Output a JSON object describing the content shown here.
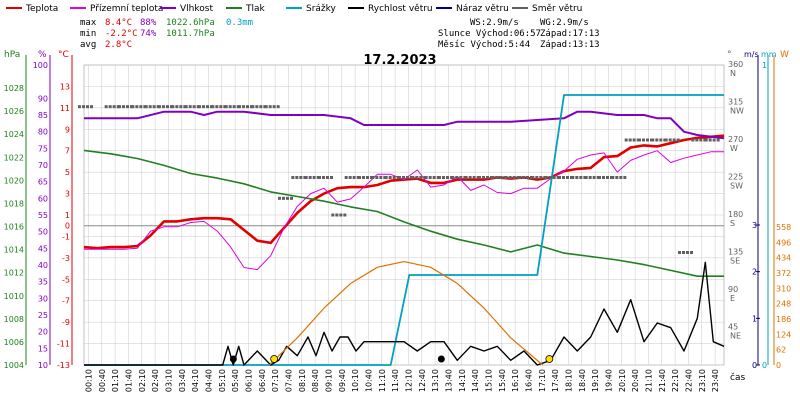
{
  "legend": [
    {
      "label": "Teplota",
      "color": "#e00000"
    },
    {
      "label": "Přízemní teplota",
      "color": "#e000e0"
    },
    {
      "label": "Vlhkost",
      "color": "#8000c0"
    },
    {
      "label": "Tlak",
      "color": "#208020"
    },
    {
      "label": "Srážky",
      "color": "#00a0c0"
    },
    {
      "label": "Rychlost větru",
      "color": "#000000"
    },
    {
      "label": "Náraz větru",
      "color": "#000080"
    },
    {
      "label": "Směr větru",
      "color": "#606060"
    }
  ],
  "stats": {
    "max_label": "max",
    "max_temp": "8.4°C",
    "max_hum": "88%",
    "max_press": "1022.6hPa",
    "max_rain": "0.3mm",
    "min_label": "min",
    "min_temp": "-2.2°C",
    "min_hum": "74%",
    "min_press": "1011.7hPa",
    "avg_label": "avg",
    "avg_temp": "2.8°C"
  },
  "wind_info": {
    "ws": "WS:2.9m/s",
    "wg": "WG:2.9m/s",
    "sun_rise": "Slunce Východ:06:57",
    "sun_set": "Západ:17:13",
    "moon_rise": "Měsíc Východ:5:44",
    "moon_set": "Západ:13:13"
  },
  "date_title": "17.2.2023",
  "axis_units": {
    "hpa": "hPa",
    "percent": "%",
    "celsius": "°C",
    "degree": "°",
    "ms": "m/s",
    "mm": "mm",
    "w": "W",
    "time": "čas"
  },
  "colors": {
    "temp": "#e00000",
    "ground": "#e000e0",
    "humidity": "#8000c0",
    "pressure": "#208020",
    "rain": "#00a0c0",
    "wind": "#000000",
    "gust": "#000080",
    "direction": "#606060",
    "solar": "#e07000",
    "grid": "#c8c8c8"
  },
  "chart_data": {
    "type": "line",
    "title": "17.2.2023",
    "x_ticks": [
      "00:10",
      "00:40",
      "01:10",
      "01:40",
      "02:10",
      "02:40",
      "03:10",
      "03:40",
      "04:10",
      "04:40",
      "05:10",
      "05:40",
      "06:10",
      "06:40",
      "07:10",
      "07:40",
      "08:10",
      "08:40",
      "09:10",
      "09:40",
      "10:10",
      "10:40",
      "11:10",
      "11:40",
      "12:10",
      "12:40",
      "13:10",
      "13:40",
      "14:10",
      "14:40",
      "15:10",
      "15:40",
      "16:10",
      "16:40",
      "17:10",
      "17:40",
      "18:10",
      "18:40",
      "19:10",
      "19:40",
      "20:10",
      "20:40",
      "21:10",
      "21:40",
      "22:10",
      "22:40",
      "23:10",
      "23:40"
    ],
    "y_axes": {
      "pressure_hpa": {
        "ticks": [
          "1028",
          "1026",
          "1024",
          "1022",
          "1020",
          "1018",
          "1016",
          "1014",
          "1012",
          "1010",
          "1008",
          "1006",
          "1004"
        ],
        "range": [
          1004,
          1030
        ]
      },
      "humidity_pct": {
        "ticks": [
          "100",
          "90",
          "85",
          "80",
          "75",
          "70",
          "65",
          "60",
          "55",
          "50",
          "45",
          "40",
          "35",
          "30",
          "25",
          "20",
          "15",
          "10"
        ],
        "range": [
          10,
          100
        ]
      },
      "temperature_c": {
        "ticks": [
          "13",
          "11",
          "9",
          "7",
          "5",
          "3",
          "1",
          "0",
          "-1",
          "-3",
          "-5",
          "-7",
          "-9",
          "-11",
          "-13"
        ],
        "range": [
          -13,
          15
        ]
      },
      "direction_deg": {
        "ticks": [
          "360",
          "315",
          "270",
          "225",
          "180",
          "135",
          "90",
          "45"
        ],
        "names": [
          "N",
          "NW",
          "W",
          "SW",
          "S",
          "SE",
          "E",
          "NE"
        ],
        "range": [
          0,
          360
        ]
      },
      "wind_ms": {
        "ticks": [
          "3",
          "2",
          "1",
          "0"
        ],
        "range": [
          0,
          3
        ]
      },
      "rain_mm": {
        "ticks": [
          "1",
          "0"
        ],
        "range": [
          0,
          1
        ]
      },
      "solar_w": {
        "ticks": [
          "558",
          "496",
          "434",
          "372",
          "310",
          "248",
          "186",
          "124",
          "62",
          "0"
        ],
        "range": [
          0,
          558
        ]
      }
    },
    "series": [
      {
        "name": "Teplota",
        "axis": "temperature_c",
        "x": [
          0,
          0.5,
          1,
          1.5,
          2,
          2.5,
          3,
          3.5,
          4,
          4.5,
          5,
          5.5,
          6,
          6.5,
          7,
          7.5,
          8,
          8.5,
          9,
          9.5,
          10,
          10.5,
          11,
          11.5,
          12,
          12.5,
          13,
          13.5,
          14,
          14.5,
          15,
          15.5,
          16,
          16.5,
          17,
          17.5,
          18,
          18.5,
          19,
          19.5,
          20,
          20.5,
          21,
          21.5,
          22,
          22.5,
          23,
          23.5,
          24
        ],
        "values": [
          -2.0,
          -2.1,
          -2.0,
          -2.0,
          -1.9,
          -0.9,
          0.4,
          0.4,
          0.6,
          0.7,
          0.7,
          0.6,
          -0.4,
          -1.4,
          -1.6,
          -0.2,
          1.2,
          2.3,
          3.0,
          3.5,
          3.6,
          3.6,
          3.8,
          4.2,
          4.3,
          4.4,
          4.0,
          4.0,
          4.3,
          4.3,
          4.3,
          4.5,
          4.4,
          4.5,
          4.3,
          4.5,
          5.1,
          5.3,
          5.4,
          6.4,
          6.5,
          7.3,
          7.5,
          7.4,
          7.7,
          8.0,
          8.2,
          8.3,
          8.4
        ]
      },
      {
        "name": "Přízemní teplota",
        "axis": "temperature_c",
        "x": [
          0,
          0.5,
          1,
          1.5,
          2,
          2.5,
          3,
          3.5,
          4,
          4.5,
          5,
          5.5,
          6,
          6.5,
          7,
          7.5,
          8,
          8.5,
          9,
          9.5,
          10,
          10.5,
          11,
          11.5,
          12,
          12.5,
          13,
          13.5,
          14,
          14.5,
          15,
          15.5,
          16,
          16.5,
          17,
          17.5,
          18,
          18.5,
          19,
          19.5,
          20,
          20.5,
          21,
          21.5,
          22,
          22.5,
          23,
          23.5,
          24
        ],
        "values": [
          -2.2,
          -2.2,
          -2.2,
          -2.2,
          -2.1,
          -0.5,
          -0.1,
          -0.1,
          0.3,
          0.4,
          -0.5,
          -2.0,
          -3.9,
          -4.1,
          -2.8,
          -0.2,
          1.8,
          3.0,
          3.5,
          2.2,
          2.5,
          3.6,
          4.8,
          4.8,
          4.3,
          5.2,
          3.6,
          3.8,
          4.6,
          3.3,
          3.8,
          3.1,
          3.0,
          3.5,
          3.5,
          4.4,
          5.1,
          6.2,
          6.6,
          6.8,
          5.0,
          6.1,
          6.6,
          7.0,
          5.9,
          6.3,
          6.6,
          6.9,
          6.9
        ]
      },
      {
        "name": "Vlhkost",
        "axis": "humidity_pct",
        "x": [
          0,
          2,
          3,
          4,
          4.5,
          5,
          6,
          7,
          9,
          10,
          10.5,
          11,
          12,
          13,
          13.5,
          14,
          16,
          18,
          18.5,
          19,
          20,
          21,
          21.5,
          22,
          22.5,
          23,
          24
        ],
        "values": [
          84,
          84,
          86,
          86,
          85,
          86,
          86,
          85,
          85,
          84,
          82,
          82,
          82,
          82,
          82,
          83,
          83,
          84,
          86,
          86,
          85,
          85,
          84,
          84,
          80,
          79,
          78
        ]
      },
      {
        "name": "Tlak",
        "axis": "pressure_hpa",
        "x": [
          0,
          1,
          2,
          3,
          4,
          5,
          6,
          7,
          8,
          9,
          10,
          11,
          12,
          13,
          14,
          15,
          16,
          17,
          18,
          19,
          20,
          21,
          22,
          23,
          24
        ],
        "values": [
          1022.6,
          1022.3,
          1021.9,
          1021.3,
          1020.6,
          1020.2,
          1019.7,
          1019.0,
          1018.6,
          1018.2,
          1017.7,
          1017.3,
          1016.4,
          1015.6,
          1014.9,
          1014.4,
          1013.8,
          1014.4,
          1013.7,
          1013.4,
          1013.1,
          1012.7,
          1012.2,
          1011.7,
          1011.7
        ]
      },
      {
        "name": "Srážky",
        "axis": "rain_mm",
        "x": [
          0,
          11.5,
          12.2,
          17.0,
          17.5,
          18.0,
          24
        ],
        "values": [
          0,
          0,
          0.3,
          0.3,
          0.6,
          0.9,
          0.9
        ]
      },
      {
        "name": "Rychlost větru",
        "axis": "wind_ms",
        "x": [
          0,
          5.2,
          5.4,
          5.6,
          5.8,
          6.0,
          6.5,
          7.0,
          7.3,
          7.6,
          8.0,
          8.4,
          8.7,
          9.0,
          9.3,
          9.6,
          9.9,
          10.2,
          10.5,
          11.0,
          11.5,
          12.0,
          12.5,
          13.0,
          13.5,
          14.0,
          14.5,
          15.0,
          15.5,
          16.0,
          16.5,
          17.0,
          17.5,
          18.0,
          18.5,
          19.0,
          19.5,
          20.0,
          20.5,
          21.0,
          21.5,
          22.0,
          22.5,
          23.0,
          23.3,
          23.6,
          24.0
        ],
        "values": [
          0,
          0,
          0.4,
          0,
          0.4,
          0,
          0.3,
          0,
          0.1,
          0.4,
          0.2,
          0.6,
          0.2,
          0.7,
          0.3,
          0.6,
          0.6,
          0.3,
          0.5,
          0.5,
          0.5,
          0.5,
          0.3,
          0.5,
          0.5,
          0.1,
          0.4,
          0.3,
          0.4,
          0.1,
          0.3,
          0.0,
          0.1,
          0.6,
          0.3,
          0.6,
          1.2,
          0.7,
          1.4,
          0.5,
          0.9,
          0.8,
          0.3,
          1.0,
          2.2,
          0.5,
          0.4
        ]
      },
      {
        "name": "Solar",
        "axis": "solar_w",
        "x": [
          6.95,
          8,
          9,
          10,
          11,
          12,
          13,
          14,
          15,
          16,
          17.2
        ],
        "values": [
          0,
          110,
          230,
          330,
          395,
          418,
          395,
          330,
          230,
          110,
          0
        ]
      },
      {
        "name": "Směr větru",
        "axis": "direction_deg",
        "x": [
          0,
          1,
          1.5,
          2,
          2.5,
          3,
          3.5,
          4,
          4.5,
          5,
          5.5,
          6,
          6.5,
          7,
          7.5,
          8,
          8.5,
          9,
          9.5,
          10,
          10.5,
          11,
          11.5,
          12,
          12.5,
          13,
          13.5,
          14,
          14.5,
          15,
          15.5,
          16,
          16.5,
          17,
          17.5,
          18,
          18.5,
          19,
          19.5,
          20,
          20.5,
          21,
          21.5,
          22,
          22.5,
          23,
          23.5
        ],
        "values": [
          310,
          310,
          310,
          310,
          310,
          310,
          310,
          310,
          310,
          310,
          310,
          310,
          310,
          310,
          200,
          225,
          225,
          225,
          180,
          225,
          225,
          225,
          225,
          225,
          225,
          225,
          225,
          225,
          225,
          225,
          225,
          225,
          225,
          225,
          225,
          225,
          225,
          225,
          225,
          225,
          270,
          270,
          270,
          270,
          135,
          270,
          270
        ]
      }
    ]
  }
}
